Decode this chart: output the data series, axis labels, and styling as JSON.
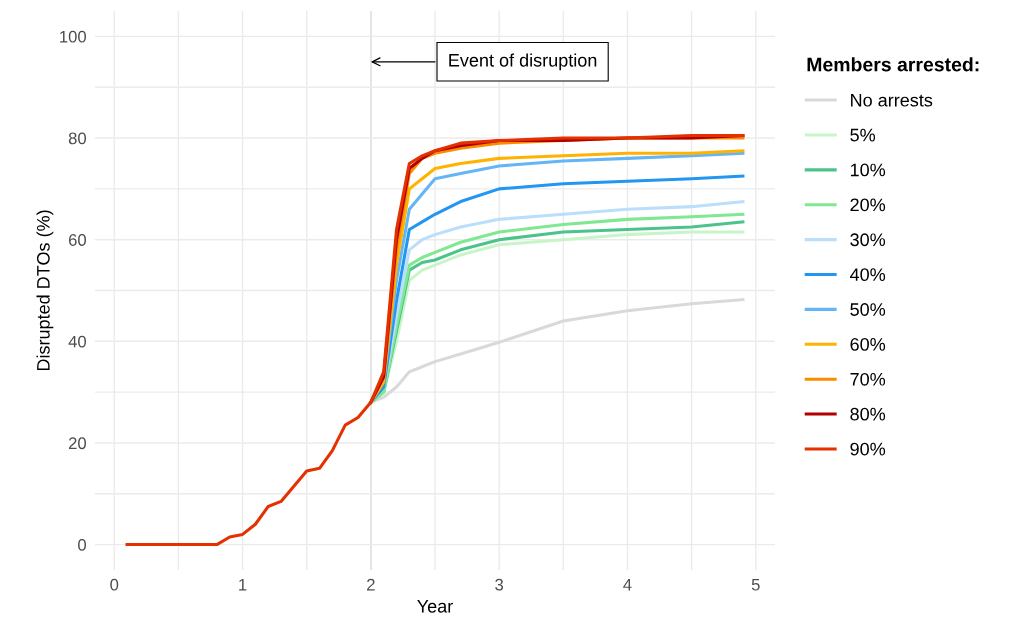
{
  "chart_data": {
    "type": "line",
    "xlabel": "Year",
    "ylabel": "Disrupted DTOs (%)",
    "legend_title": "Members arrested:",
    "legend": "right",
    "grid": true,
    "xlim": [
      -0.15,
      5.15
    ],
    "ylim": [
      -5,
      105
    ],
    "xticks": [
      0,
      {
        "value": 0.5,
        "label": null
      },
      1,
      {
        "value": 1.5,
        "label": null
      },
      2,
      {
        "value": 2.5,
        "label": null
      },
      3,
      {
        "value": 3.5,
        "label": null
      },
      4,
      {
        "value": 4.5,
        "label": null
      },
      5
    ],
    "yticks": [
      0,
      {
        "value": 10,
        "label": null
      },
      20,
      {
        "value": 30,
        "label": null
      },
      40,
      {
        "value": 50,
        "label": null
      },
      60,
      {
        "value": 70,
        "label": null
      },
      80,
      {
        "value": 90,
        "label": null
      },
      100
    ],
    "x": [
      0.1,
      0.8,
      0.9,
      1.0,
      1.1,
      1.2,
      1.3,
      1.4,
      1.5,
      1.6,
      1.7,
      1.8,
      1.9,
      2.0,
      2.1,
      2.2,
      2.3,
      2.4,
      2.5,
      2.7,
      3.0,
      3.5,
      4.0,
      4.5,
      4.9
    ],
    "ref_lines": [
      {
        "axis": "x",
        "value": 2,
        "color": "#bdbdbd"
      }
    ],
    "annotations": [
      {
        "text": "Event of disruption",
        "x": 2,
        "y": 95
      }
    ],
    "series": [
      {
        "name": "No arrests",
        "color": "#d9d9d9",
        "values": [
          null,
          null,
          null,
          null,
          null,
          null,
          null,
          null,
          null,
          null,
          null,
          null,
          null,
          28,
          29,
          31,
          34,
          35,
          36,
          37.5,
          39.8,
          44,
          46,
          47.4,
          48.2
        ]
      },
      {
        "name": "5%",
        "color": "#c8f5c8",
        "values": [
          null,
          null,
          null,
          null,
          null,
          null,
          null,
          null,
          null,
          null,
          null,
          null,
          null,
          28,
          30,
          40,
          52,
          54,
          55,
          57,
          59,
          60,
          61,
          61.5,
          61.5
        ]
      },
      {
        "name": "10%",
        "color": "#4cc38a",
        "values": [
          null,
          null,
          null,
          null,
          null,
          null,
          null,
          null,
          null,
          null,
          null,
          null,
          null,
          28,
          30,
          42,
          54,
          55.5,
          56,
          58,
          60,
          61.5,
          62,
          62.5,
          63.5
        ]
      },
      {
        "name": "20%",
        "color": "#80e890",
        "values": [
          null,
          null,
          null,
          null,
          null,
          null,
          null,
          null,
          null,
          null,
          null,
          null,
          null,
          28,
          30,
          43,
          55,
          56.5,
          57.5,
          59.5,
          61.5,
          63,
          64,
          64.5,
          65
        ]
      },
      {
        "name": "30%",
        "color": "#bbdefb",
        "values": [
          null,
          null,
          null,
          null,
          null,
          null,
          null,
          null,
          null,
          null,
          null,
          null,
          null,
          28,
          31,
          45,
          58,
          60,
          61,
          62.5,
          64,
          65,
          66,
          66.5,
          67.5
        ]
      },
      {
        "name": "40%",
        "color": "#2196f3",
        "values": [
          null,
          null,
          null,
          null,
          null,
          null,
          null,
          null,
          null,
          null,
          null,
          null,
          null,
          28,
          31,
          48,
          62,
          63.5,
          65,
          67.5,
          70,
          71,
          71.5,
          72,
          72.5
        ]
      },
      {
        "name": "50%",
        "color": "#64b5f6",
        "values": [
          null,
          null,
          null,
          null,
          null,
          null,
          null,
          null,
          null,
          null,
          null,
          null,
          null,
          28,
          32,
          52,
          66,
          69,
          72,
          73,
          74.5,
          75.5,
          76,
          76.5,
          77
        ]
      },
      {
        "name": "60%",
        "color": "#ffb300",
        "values": [
          null,
          null,
          null,
          null,
          null,
          null,
          null,
          null,
          null,
          null,
          null,
          null,
          null,
          28,
          32,
          55,
          70,
          72,
          74,
          75,
          76,
          76.5,
          77,
          77,
          77.5
        ]
      },
      {
        "name": "70%",
        "color": "#fb8c00",
        "values": [
          null,
          null,
          null,
          null,
          null,
          null,
          null,
          null,
          null,
          null,
          null,
          null,
          null,
          28,
          33,
          58,
          73,
          76,
          77,
          78,
          79,
          79.5,
          80,
          80,
          80
        ]
      },
      {
        "name": "80%",
        "color": "#b00000",
        "values": [
          null,
          null,
          null,
          null,
          null,
          null,
          null,
          null,
          null,
          null,
          null,
          null,
          null,
          28,
          33,
          60,
          74,
          76,
          77.5,
          78.5,
          79.5,
          79.5,
          80,
          80,
          80.5
        ]
      },
      {
        "name": "90%",
        "color": "#e53000",
        "values": [
          0,
          0,
          1.5,
          2,
          4,
          7.5,
          8.5,
          11.5,
          14.5,
          15,
          18.5,
          23.5,
          25,
          28,
          34,
          62,
          75,
          76.5,
          77.5,
          79,
          79.5,
          80,
          80,
          80.5,
          80.5
        ]
      }
    ]
  }
}
